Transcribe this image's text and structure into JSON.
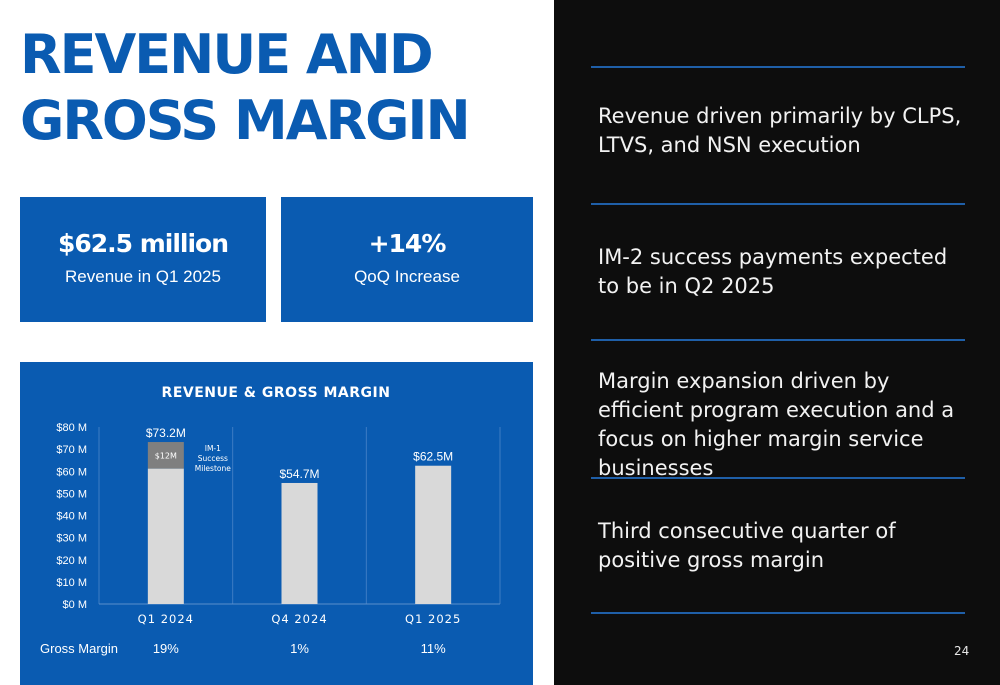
{
  "title": {
    "line1": "REVENUE AND",
    "line2": "GROSS MARGIN"
  },
  "kpis": [
    {
      "value": "$62.5 million",
      "label": "Revenue in Q1 2025"
    },
    {
      "value": "+14%",
      "label": "QoQ Increase"
    }
  ],
  "colors": {
    "brand_blue": "#0a5bb1",
    "dark_bg": "#0d0d0d",
    "bar": "#d9d9d9",
    "milestone": "#7f7f7f",
    "rule": "#1f5fa8"
  },
  "chart_data": {
    "type": "bar",
    "title": "REVENUE & GROSS MARGIN",
    "categories": [
      "Q1 2024",
      "Q4 2024",
      "Q1 2025"
    ],
    "values": [
      73.2,
      54.7,
      62.5
    ],
    "value_labels": [
      "$73.2M",
      "$54.7M",
      "$62.5M"
    ],
    "stacked_segment": {
      "category": "Q1 2024",
      "value": 12,
      "label": "$12M",
      "annotation": [
        "IM-1",
        "Success",
        "Milestone"
      ]
    },
    "ylim": [
      0,
      80
    ],
    "yticks": [
      0,
      10,
      20,
      30,
      40,
      50,
      60,
      70,
      80
    ],
    "ytick_labels": [
      "$0 M",
      "$10 M",
      "$20 M",
      "$30 M",
      "$40 M",
      "$50 M",
      "$60 M",
      "$70 M",
      "$80 M"
    ],
    "xlabel": "",
    "ylabel": "",
    "grid": false,
    "gross_margin": {
      "label": "Gross Margin",
      "values": [
        "19%",
        "1%",
        "11%"
      ]
    }
  },
  "bullets": [
    "Revenue driven primarily by CLPS, LTVS, and NSN execution",
    "IM-2 success payments expected to be in Q2 2025",
    "Margin expansion driven by efficient program execution and a focus on higher margin service businesses",
    "Third consecutive quarter of positive gross margin"
  ],
  "page_number": "24"
}
